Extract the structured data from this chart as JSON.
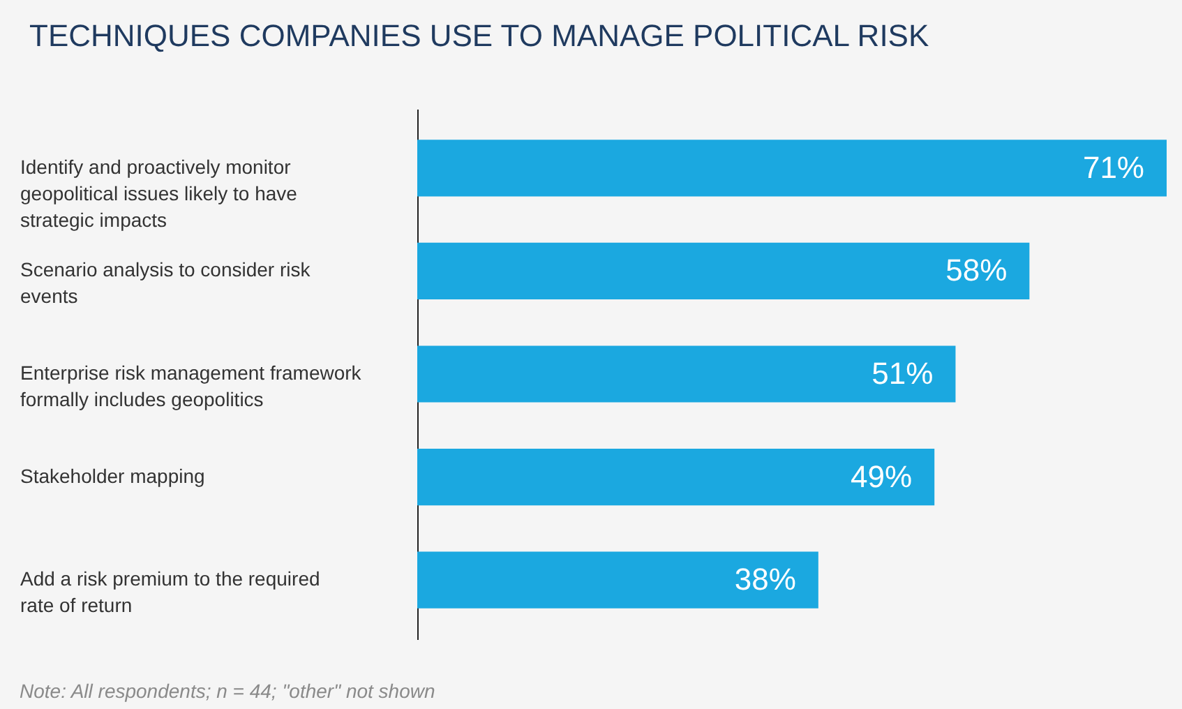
{
  "chart_data": {
    "type": "bar",
    "orientation": "horizontal",
    "title": "TECHNIQUES COMPANIES USE TO MANAGE POLITICAL RISK",
    "categories": [
      "Identify and proactively monitor geopolitical issues likely to have strategic impacts",
      "Scenario analysis to consider risk events",
      "Enterprise risk management framework formally includes geopolitics",
      "Stakeholder mapping",
      "Add a risk premium to the required rate of return"
    ],
    "values": [
      71,
      58,
      51,
      49,
      38
    ],
    "value_labels": [
      "71%",
      "58%",
      "51%",
      "49%",
      "38%"
    ],
    "color": "#1ba8e0",
    "annotations": [
      "Note: All respondents; n = 44; \"other\" not shown"
    ]
  }
}
